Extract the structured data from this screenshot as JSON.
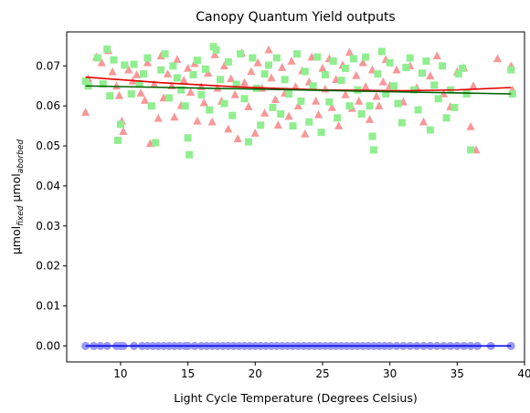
{
  "chart_data": {
    "type": "scatter",
    "title": "Canopy Quantum Yield outputs",
    "xlabel": "Light Cycle Temperature (Degrees Celsius)",
    "ylabel": {
      "prefix": "μmol",
      "sub1": "fixed",
      "middle": " μmol",
      "sub2": "aborbed"
    },
    "xlim": [
      6.0,
      40.0
    ],
    "ylim": [
      -0.004,
      0.0785
    ],
    "xticks": [
      10,
      15,
      20,
      25,
      30,
      35,
      40
    ],
    "xtick_labels": [
      "10",
      "15",
      "20",
      "25",
      "30",
      "35",
      "40"
    ],
    "yticks": [
      0.0,
      0.01,
      0.02,
      0.03,
      0.04,
      0.05,
      0.06,
      0.07
    ],
    "ytick_labels": [
      "0.00",
      "0.01",
      "0.02",
      "0.03",
      "0.04",
      "0.05",
      "0.06",
      "0.07"
    ],
    "grid": false,
    "legend": "none",
    "colors": {
      "triangles": "#f79898",
      "squares": "#90ee90",
      "circles": "#9a9aee",
      "fit_red": "#e00000",
      "fit_green": "#006400",
      "fit_blue": "#0000ee"
    },
    "series": [
      {
        "marker": "triangle",
        "color_key": "triangles",
        "points": [
          [
            7.4,
            0.0584
          ],
          [
            7.6,
            0.0668
          ],
          [
            8.2,
            0.0722
          ],
          [
            8.6,
            0.0708
          ],
          [
            9.1,
            0.0738
          ],
          [
            9.4,
            0.0685
          ],
          [
            9.7,
            0.065
          ],
          [
            9.9,
            0.0626
          ],
          [
            10.1,
            0.0562
          ],
          [
            10.2,
            0.0536
          ],
          [
            10.6,
            0.069
          ],
          [
            10.9,
            0.0662
          ],
          [
            11.2,
            0.0678
          ],
          [
            11.5,
            0.0632
          ],
          [
            11.8,
            0.0614
          ],
          [
            12.0,
            0.0708
          ],
          [
            12.2,
            0.0506
          ],
          [
            12.5,
            0.0654
          ],
          [
            12.8,
            0.0569
          ],
          [
            13.0,
            0.0725
          ],
          [
            13.2,
            0.062
          ],
          [
            13.5,
            0.068
          ],
          [
            13.8,
            0.065
          ],
          [
            14.0,
            0.0572
          ],
          [
            14.2,
            0.0716
          ],
          [
            14.5,
            0.0601
          ],
          [
            14.7,
            0.0664
          ],
          [
            15.0,
            0.0694
          ],
          [
            15.2,
            0.0634
          ],
          [
            15.5,
            0.0706
          ],
          [
            15.7,
            0.0562
          ],
          [
            16.0,
            0.0648
          ],
          [
            16.2,
            0.0608
          ],
          [
            16.5,
            0.0682
          ],
          [
            16.8,
            0.056
          ],
          [
            17.0,
            0.0728
          ],
          [
            17.2,
            0.0644
          ],
          [
            17.5,
            0.0612
          ],
          [
            17.7,
            0.07
          ],
          [
            18.0,
            0.0542
          ],
          [
            18.2,
            0.0668
          ],
          [
            18.5,
            0.0628
          ],
          [
            18.7,
            0.0518
          ],
          [
            19.0,
            0.0732
          ],
          [
            19.2,
            0.0658
          ],
          [
            19.5,
            0.0598
          ],
          [
            19.7,
            0.0686
          ],
          [
            20.0,
            0.0532
          ],
          [
            20.2,
            0.0708
          ],
          [
            20.5,
            0.0644
          ],
          [
            20.7,
            0.0582
          ],
          [
            21.0,
            0.074
          ],
          [
            21.2,
            0.067
          ],
          [
            21.5,
            0.0616
          ],
          [
            21.7,
            0.0552
          ],
          [
            22.0,
            0.0696
          ],
          [
            22.2,
            0.0632
          ],
          [
            22.5,
            0.0574
          ],
          [
            22.7,
            0.0712
          ],
          [
            23.0,
            0.0648
          ],
          [
            23.2,
            0.06
          ],
          [
            23.5,
            0.0688
          ],
          [
            23.7,
            0.053
          ],
          [
            24.0,
            0.066
          ],
          [
            24.2,
            0.0722
          ],
          [
            24.5,
            0.0612
          ],
          [
            24.7,
            0.0578
          ],
          [
            25.0,
            0.0694
          ],
          [
            25.2,
            0.0642
          ],
          [
            25.5,
            0.0718
          ],
          [
            25.7,
            0.0596
          ],
          [
            26.0,
            0.0666
          ],
          [
            26.2,
            0.055
          ],
          [
            26.5,
            0.0702
          ],
          [
            26.7,
            0.0628
          ],
          [
            27.0,
            0.0734
          ],
          [
            27.2,
            0.0594
          ],
          [
            27.5,
            0.0676
          ],
          [
            27.7,
            0.0612
          ],
          [
            28.0,
            0.0708
          ],
          [
            28.2,
            0.0648
          ],
          [
            28.5,
            0.0566
          ],
          [
            28.7,
            0.069
          ],
          [
            29.0,
            0.0624
          ],
          [
            29.2,
            0.06
          ],
          [
            29.5,
            0.066
          ],
          [
            29.7,
            0.0716
          ],
          [
            30.0,
            0.065
          ],
          [
            30.5,
            0.069
          ],
          [
            31.0,
            0.061
          ],
          [
            31.5,
            0.07
          ],
          [
            32.0,
            0.0645
          ],
          [
            32.5,
            0.056
          ],
          [
            33.0,
            0.0675
          ],
          [
            33.5,
            0.0725
          ],
          [
            34.0,
            0.063
          ],
          [
            34.5,
            0.0598
          ],
          [
            35.0,
            0.0685
          ],
          [
            35.5,
            0.0695
          ],
          [
            36.0,
            0.0548
          ],
          [
            36.2,
            0.065
          ],
          [
            36.4,
            0.049
          ],
          [
            38.0,
            0.0718
          ],
          [
            39.0,
            0.07
          ],
          [
            39.1,
            0.064
          ]
        ]
      },
      {
        "marker": "square",
        "color_key": "squares",
        "points": [
          [
            7.4,
            0.0662
          ],
          [
            7.6,
            0.065
          ],
          [
            8.3,
            0.072
          ],
          [
            8.7,
            0.0655
          ],
          [
            9.0,
            0.0742
          ],
          [
            9.2,
            0.0625
          ],
          [
            9.5,
            0.0715
          ],
          [
            9.8,
            0.0514
          ],
          [
            10.0,
            0.0554
          ],
          [
            10.3,
            0.0702
          ],
          [
            10.8,
            0.063
          ],
          [
            11.0,
            0.0704
          ],
          [
            11.4,
            0.0655
          ],
          [
            11.7,
            0.068
          ],
          [
            12.0,
            0.072
          ],
          [
            12.3,
            0.06
          ],
          [
            12.6,
            0.0508
          ],
          [
            13.0,
            0.069
          ],
          [
            13.3,
            0.073
          ],
          [
            13.6,
            0.062
          ],
          [
            13.9,
            0.07
          ],
          [
            14.2,
            0.067
          ],
          [
            14.5,
            0.064
          ],
          [
            14.8,
            0.06
          ],
          [
            15.0,
            0.052
          ],
          [
            15.1,
            0.0478
          ],
          [
            15.4,
            0.0678
          ],
          [
            15.7,
            0.0714
          ],
          [
            16.0,
            0.0628
          ],
          [
            16.3,
            0.0692
          ],
          [
            16.6,
            0.059
          ],
          [
            16.9,
            0.0748
          ],
          [
            17.1,
            0.074
          ],
          [
            17.4,
            0.0666
          ],
          [
            17.7,
            0.0606
          ],
          [
            18.0,
            0.071
          ],
          [
            18.3,
            0.0576
          ],
          [
            18.6,
            0.0654
          ],
          [
            18.9,
            0.073
          ],
          [
            19.2,
            0.0618
          ],
          [
            19.5,
            0.051
          ],
          [
            19.8,
            0.072
          ],
          [
            20.1,
            0.0644
          ],
          [
            20.4,
            0.0552
          ],
          [
            20.7,
            0.068
          ],
          [
            21.0,
            0.0702
          ],
          [
            21.3,
            0.0596
          ],
          [
            21.6,
            0.072
          ],
          [
            21.9,
            0.058
          ],
          [
            22.2,
            0.0666
          ],
          [
            22.5,
            0.063
          ],
          [
            22.8,
            0.055
          ],
          [
            23.1,
            0.073
          ],
          [
            23.4,
            0.0612
          ],
          [
            23.7,
            0.0686
          ],
          [
            24.0,
            0.056
          ],
          [
            24.3,
            0.065
          ],
          [
            24.6,
            0.0722
          ],
          [
            24.9,
            0.0534
          ],
          [
            25.2,
            0.0678
          ],
          [
            25.5,
            0.061
          ],
          [
            25.8,
            0.0712
          ],
          [
            26.1,
            0.057
          ],
          [
            26.4,
            0.0664
          ],
          [
            26.7,
            0.0694
          ],
          [
            27.0,
            0.06
          ],
          [
            27.3,
            0.0718
          ],
          [
            27.6,
            0.064
          ],
          [
            27.9,
            0.058
          ],
          [
            28.2,
            0.0722
          ],
          [
            28.5,
            0.06
          ],
          [
            28.7,
            0.0524
          ],
          [
            28.8,
            0.049
          ],
          [
            29.1,
            0.068
          ],
          [
            29.4,
            0.0736
          ],
          [
            29.7,
            0.063
          ],
          [
            30.0,
            0.0708
          ],
          [
            30.3,
            0.065
          ],
          [
            30.6,
            0.0606
          ],
          [
            30.9,
            0.0558
          ],
          [
            31.2,
            0.0696
          ],
          [
            31.5,
            0.072
          ],
          [
            31.8,
            0.064
          ],
          [
            32.1,
            0.059
          ],
          [
            32.4,
            0.0682
          ],
          [
            32.7,
            0.0712
          ],
          [
            33.0,
            0.054
          ],
          [
            33.3,
            0.0652
          ],
          [
            33.6,
            0.0618
          ],
          [
            33.9,
            0.07
          ],
          [
            34.2,
            0.057
          ],
          [
            34.5,
            0.064
          ],
          [
            34.8,
            0.0596
          ],
          [
            35.1,
            0.068
          ],
          [
            35.4,
            0.0694
          ],
          [
            35.7,
            0.063
          ],
          [
            36.0,
            0.049
          ],
          [
            39.0,
            0.069
          ],
          [
            39.1,
            0.063
          ]
        ]
      },
      {
        "marker": "circle",
        "color_key": "circles",
        "points": [
          [
            7.4,
            0.0
          ],
          [
            8.0,
            0.0
          ],
          [
            8.5,
            0.0
          ],
          [
            9.0,
            0.0
          ],
          [
            9.7,
            0.0
          ],
          [
            10.0,
            0.0
          ],
          [
            10.2,
            0.0
          ],
          [
            11.0,
            0.0
          ],
          [
            11.6,
            0.0
          ],
          [
            12.0,
            0.0
          ],
          [
            12.4,
            0.0
          ],
          [
            12.8,
            0.0
          ],
          [
            13.2,
            0.0
          ],
          [
            13.6,
            0.0
          ],
          [
            14.0,
            0.0
          ],
          [
            14.4,
            0.0
          ],
          [
            14.8,
            0.0
          ],
          [
            15.0,
            0.0
          ],
          [
            15.5,
            0.0
          ],
          [
            16.0,
            0.0
          ],
          [
            16.4,
            0.0
          ],
          [
            16.8,
            0.0
          ],
          [
            17.2,
            0.0
          ],
          [
            17.6,
            0.0
          ],
          [
            18.0,
            0.0
          ],
          [
            18.4,
            0.0
          ],
          [
            18.8,
            0.0
          ],
          [
            19.2,
            0.0
          ],
          [
            19.6,
            0.0
          ],
          [
            20.0,
            0.0
          ],
          [
            20.4,
            0.0
          ],
          [
            20.8,
            0.0
          ],
          [
            21.2,
            0.0
          ],
          [
            21.6,
            0.0
          ],
          [
            22.0,
            0.0
          ],
          [
            22.4,
            0.0
          ],
          [
            22.8,
            0.0
          ],
          [
            23.2,
            0.0
          ],
          [
            23.6,
            0.0
          ],
          [
            24.0,
            0.0
          ],
          [
            24.4,
            0.0
          ],
          [
            24.8,
            0.0
          ],
          [
            25.2,
            0.0
          ],
          [
            25.6,
            0.0
          ],
          [
            26.0,
            0.0
          ],
          [
            26.4,
            0.0
          ],
          [
            26.8,
            0.0
          ],
          [
            27.2,
            0.0
          ],
          [
            27.6,
            0.0
          ],
          [
            28.0,
            0.0
          ],
          [
            28.4,
            0.0
          ],
          [
            28.8,
            0.0
          ],
          [
            29.2,
            0.0
          ],
          [
            29.6,
            0.0
          ],
          [
            30.0,
            0.0
          ],
          [
            30.5,
            0.0
          ],
          [
            31.0,
            0.0
          ],
          [
            31.5,
            0.0
          ],
          [
            32.0,
            0.0
          ],
          [
            32.5,
            0.0
          ],
          [
            33.0,
            0.0
          ],
          [
            33.5,
            0.0
          ],
          [
            34.0,
            0.0
          ],
          [
            34.5,
            0.0
          ],
          [
            35.0,
            0.0
          ],
          [
            35.5,
            0.0
          ],
          [
            36.0,
            0.0
          ],
          [
            36.5,
            0.0
          ],
          [
            37.5,
            0.0
          ],
          [
            39.0,
            0.0
          ]
        ]
      }
    ],
    "fit_lines": [
      {
        "color_key": "fit_red",
        "points": [
          [
            7.4,
            0.0672
          ],
          [
            13.0,
            0.0658
          ],
          [
            19.0,
            0.0647
          ],
          [
            25.0,
            0.064
          ],
          [
            31.0,
            0.0638
          ],
          [
            35.0,
            0.064
          ],
          [
            39.0,
            0.0646
          ]
        ]
      },
      {
        "color_key": "fit_green",
        "points": [
          [
            7.4,
            0.065
          ],
          [
            39.0,
            0.063
          ]
        ]
      },
      {
        "color_key": "fit_blue",
        "points": [
          [
            7.4,
            0.0
          ],
          [
            39.0,
            0.0
          ]
        ]
      }
    ]
  }
}
